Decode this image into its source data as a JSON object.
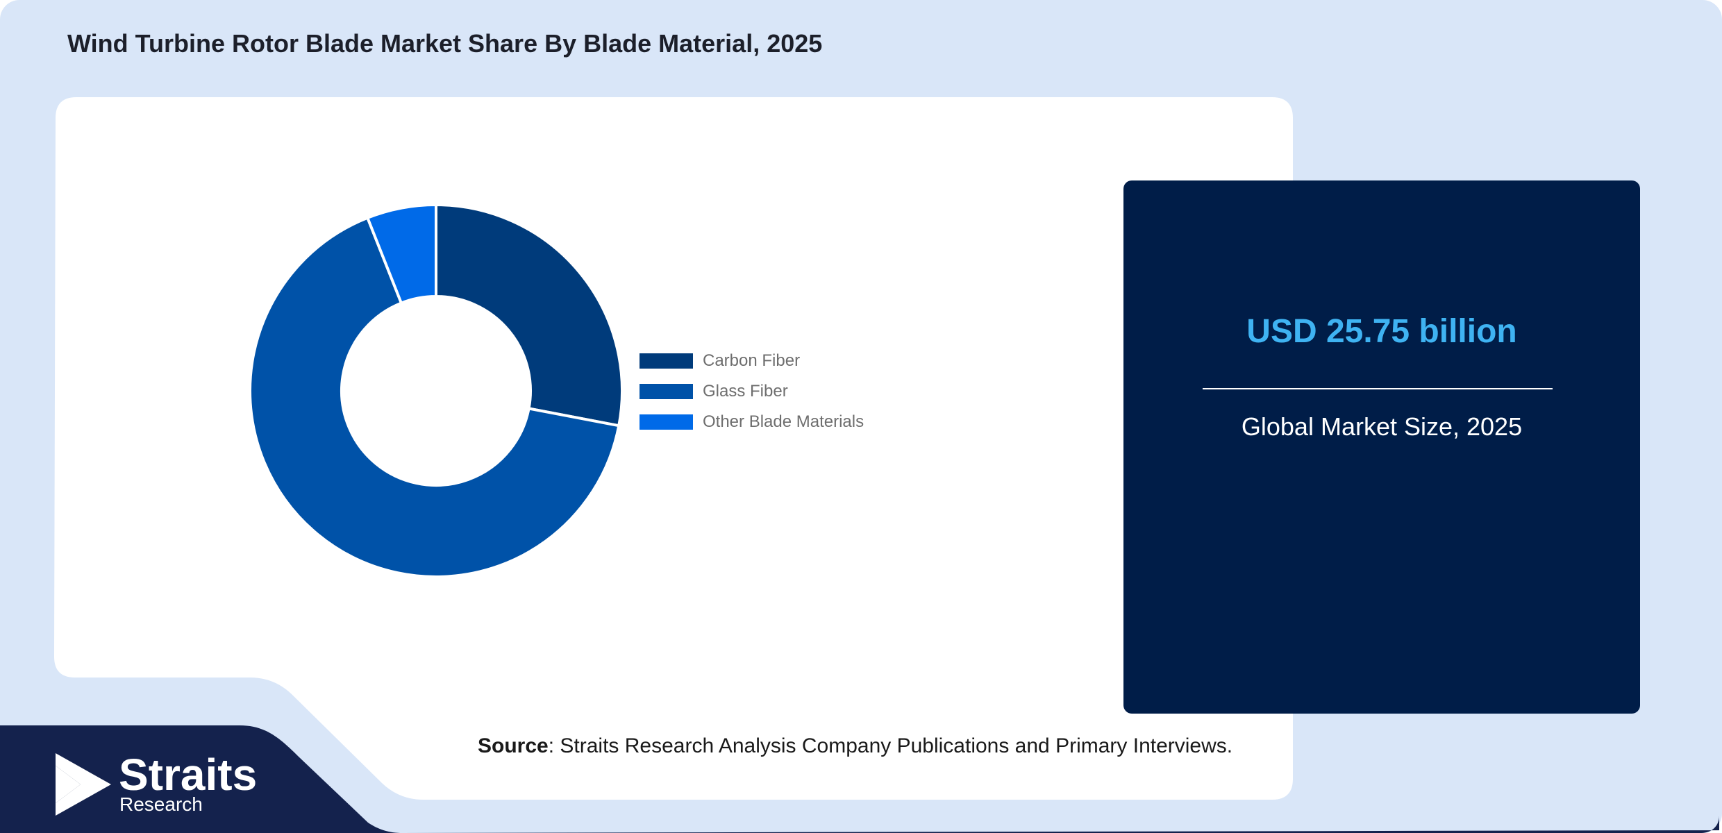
{
  "title": "Wind Turbine Rotor Blade Market Share By Blade Material, 2025",
  "colors": {
    "background": "#d9e6f8",
    "panel": "#ffffff",
    "stat_box": "#001d48",
    "stat_value": "#3fb3f2",
    "footer_band": "#14224d"
  },
  "chart_data": {
    "type": "pie",
    "donut": true,
    "categories": [
      "Carbon Fiber",
      "Glass Fiber",
      "Other Blade Materials"
    ],
    "values": [
      28,
      66,
      6
    ],
    "colors": [
      "#003b7b",
      "#0052a8",
      "#006ae8"
    ],
    "legend_position": "right"
  },
  "stat": {
    "value": "USD 25.75 billion",
    "label": "Global Market Size, 2025"
  },
  "source": {
    "label": "Source",
    "text": ": Straits Research Analysis Company Publications and Primary Interviews."
  },
  "logo": {
    "name": "Straits",
    "sub": "Research",
    "icon": "straits-arrow-icon"
  }
}
